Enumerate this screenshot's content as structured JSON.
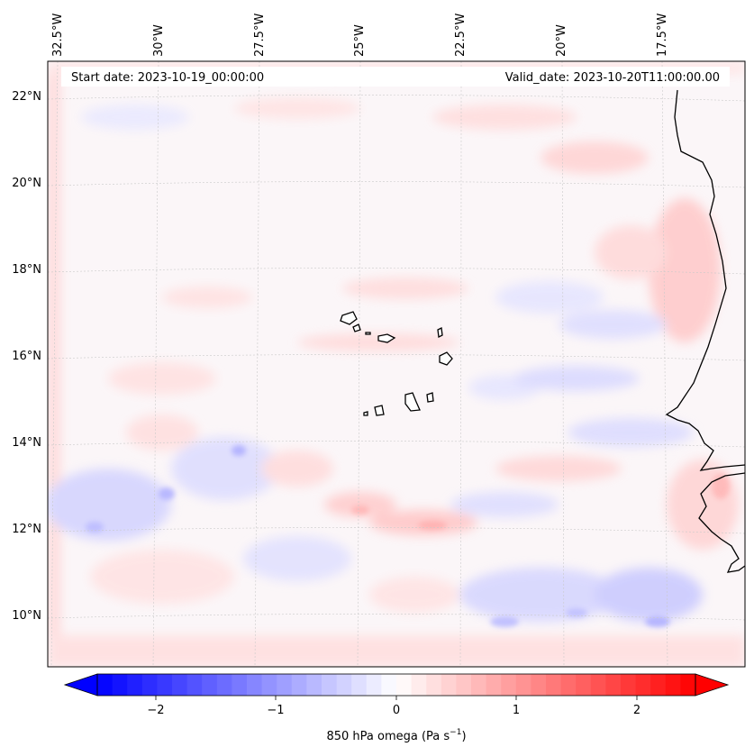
{
  "map": {
    "start_label": "Start date: 2023-10-19_00:00:00",
    "valid_label": "Valid_date: 2023-10-20T11:00:00.00",
    "lon_labels": [
      "32.5°W",
      "30°W",
      "27.5°W",
      "25°W",
      "22.5°W",
      "20°W",
      "17.5°W"
    ],
    "lat_labels": [
      "22°N",
      "20°N",
      "18°N",
      "16°N",
      "14°N",
      "12°N",
      "10°N"
    ],
    "field": "850 hPa omega",
    "colors": {
      "negative": "#0000ff",
      "zero": "#ffffff",
      "positive": "#ff0000",
      "coast": "#000000"
    }
  },
  "colorbar": {
    "label_main": "850 hPa omega (Pa s",
    "label_exp": "−1",
    "label_close": ")",
    "ticks": [
      "−2",
      "−1",
      "0",
      "1",
      "2"
    ],
    "range": [
      -2.6,
      2.6
    ]
  }
}
